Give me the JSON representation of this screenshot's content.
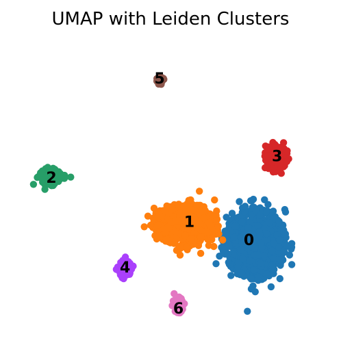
{
  "chart_data": {
    "type": "scatter",
    "title": "UMAP with Leiden Clusters",
    "xlabel": "",
    "ylabel": "",
    "axes_visible": false,
    "grid": false,
    "legend": "on data",
    "xlim": [
      -6,
      14
    ],
    "ylim": [
      -5,
      15
    ],
    "clusters": [
      {
        "label": "0",
        "color": "#1f77b4",
        "n_points": 820,
        "center": [
          9.4,
          1.7
        ],
        "spread": [
          1.95,
          2.3
        ],
        "label_pos": [
          9.0,
          1.9
        ]
      },
      {
        "label": "1",
        "color": "#ff7f0e",
        "n_points": 640,
        "center": [
          5.0,
          2.9
        ],
        "spread": [
          2.0,
          1.4
        ],
        "label_pos": [
          5.2,
          3.1
        ]
      },
      {
        "label": "2",
        "color": "#279e68",
        "n_points": 150,
        "center": [
          -3.7,
          6.1
        ],
        "spread": [
          0.7,
          0.55
        ],
        "label_pos": [
          -3.6,
          6.0
        ]
      },
      {
        "label": "3",
        "color": "#d62728",
        "n_points": 160,
        "center": [
          10.7,
          7.3
        ],
        "spread": [
          0.7,
          0.85
        ],
        "label_pos": [
          10.8,
          7.4
        ]
      },
      {
        "label": "4",
        "color": "#aa40fc",
        "n_points": 110,
        "center": [
          1.1,
          0.1
        ],
        "spread": [
          0.45,
          0.5
        ],
        "label_pos": [
          1.1,
          0.1
        ]
      },
      {
        "label": "5",
        "color": "#8c564b",
        "n_points": 20,
        "center": [
          3.3,
          12.4
        ],
        "spread": [
          0.3,
          0.25
        ],
        "label_pos": [
          3.3,
          12.5
        ]
      },
      {
        "label": "6",
        "color": "#e377c2",
        "n_points": 40,
        "center": [
          4.5,
          -2.3
        ],
        "spread": [
          0.4,
          0.6
        ],
        "label_pos": [
          4.5,
          -2.6
        ]
      }
    ]
  }
}
